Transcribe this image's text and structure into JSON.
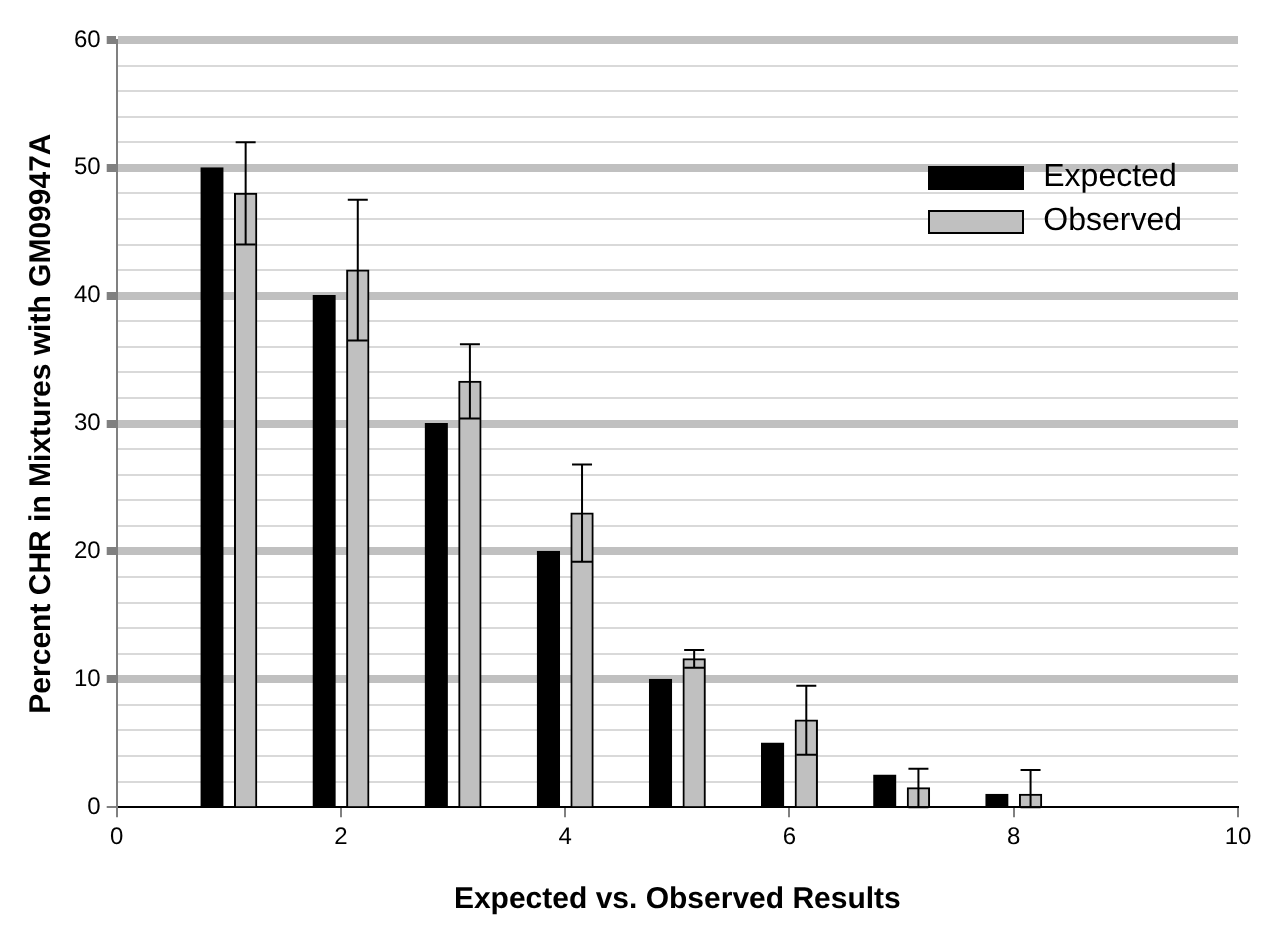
{
  "chart_data": {
    "type": "bar",
    "xlabel": "Expected vs. Observed Results",
    "ylabel": "Percent CHR in Mixtures with GM09947A",
    "xlim": [
      0,
      10
    ],
    "xticks": [
      0,
      2,
      4,
      6,
      8,
      10
    ],
    "ylim": [
      0,
      60
    ],
    "yticks": [
      0,
      {
        "value": 2,
        "label": null
      },
      {
        "value": 4,
        "label": null
      },
      {
        "value": 6,
        "label": null
      },
      {
        "value": 8,
        "label": null
      },
      10,
      {
        "value": 12,
        "label": null
      },
      {
        "value": 14,
        "label": null
      },
      {
        "value": 16,
        "label": null
      },
      {
        "value": 18,
        "label": null
      },
      20,
      {
        "value": 22,
        "label": null
      },
      {
        "value": 24,
        "label": null
      },
      {
        "value": 26,
        "label": null
      },
      {
        "value": 28,
        "label": null
      },
      30,
      {
        "value": 32,
        "label": null
      },
      {
        "value": 34,
        "label": null
      },
      {
        "value": 36,
        "label": null
      },
      {
        "value": 38,
        "label": null
      },
      40,
      {
        "value": 42,
        "label": null
      },
      {
        "value": 44,
        "label": null
      },
      {
        "value": 46,
        "label": null
      },
      {
        "value": 48,
        "label": null
      },
      50,
      {
        "value": 52,
        "label": null
      },
      {
        "value": 54,
        "label": null
      },
      {
        "value": 56,
        "label": null
      },
      {
        "value": 58,
        "label": null
      },
      60
    ],
    "grid": "y",
    "legend": "top right",
    "series": [
      {
        "name": "Expected",
        "color": "#000000",
        "x": [
          0.85,
          1.85,
          2.85,
          3.85,
          4.85,
          5.85,
          6.85,
          7.85
        ],
        "values": [
          50,
          40,
          30,
          20,
          10,
          5,
          2.5,
          1
        ]
      },
      {
        "name": "Observed",
        "color": "#c0c0c0",
        "x": [
          1.15,
          2.15,
          3.15,
          4.15,
          5.15,
          6.15,
          7.15,
          8.15
        ],
        "values": [
          48,
          42,
          33.3,
          23,
          11.6,
          6.8,
          1.5,
          1
        ],
        "errors": [
          4,
          5.5,
          2.9,
          3.8,
          0.7,
          2.7,
          1.5,
          [
            0,
            2.9
          ]
        ]
      }
    ]
  }
}
